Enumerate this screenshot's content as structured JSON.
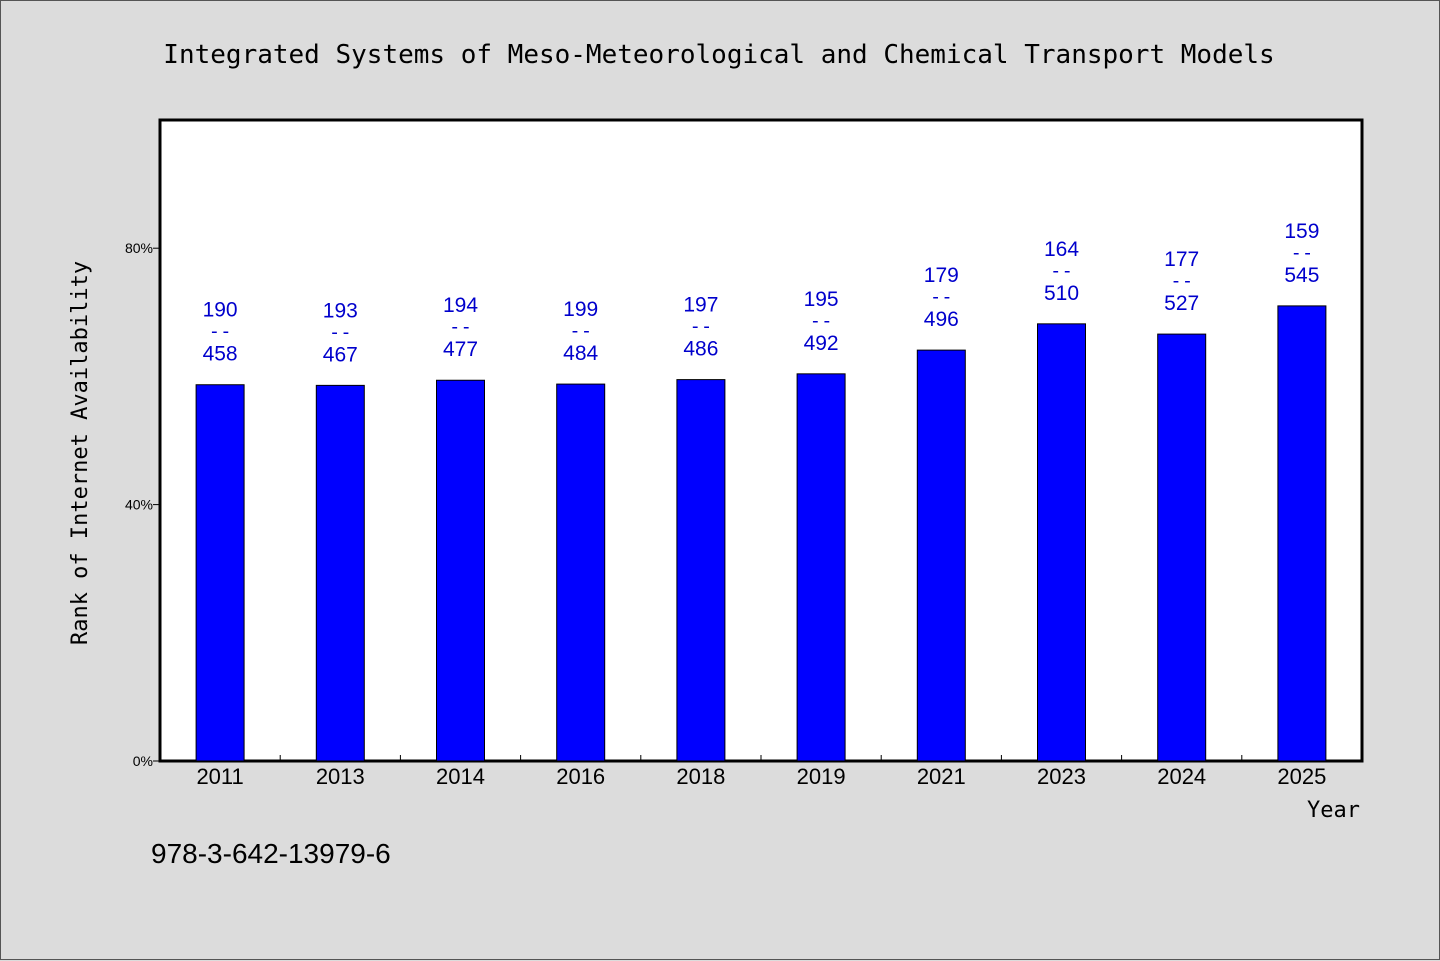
{
  "chart_data": {
    "type": "bar",
    "title": "Integrated Systems of Meso-Meteorological and Chemical Transport Models",
    "xlabel": "Year",
    "ylabel": "Rank of Internet Availability",
    "ylim": [
      0,
      100
    ],
    "yticks": [
      0,
      40,
      80
    ],
    "ytick_labels": [
      "0%",
      "40%",
      "80%"
    ],
    "categories": [
      "2011",
      "2013",
      "2014",
      "2016",
      "2018",
      "2019",
      "2021",
      "2023",
      "2024",
      "2025"
    ],
    "values": [
      58.7,
      58.6,
      59.4,
      58.8,
      59.5,
      60.4,
      64.1,
      68.2,
      66.6,
      71.0
    ],
    "label_top": [
      "190",
      "193",
      "194",
      "199",
      "197",
      "195",
      "179",
      "164",
      "177",
      "159"
    ],
    "label_bottom": [
      "458",
      "467",
      "477",
      "484",
      "486",
      "492",
      "496",
      "510",
      "527",
      "545"
    ],
    "label_separator": "--",
    "grid": false,
    "bar_color": "#0000ff",
    "label_color": "#0000cc"
  },
  "footer": {
    "isbn": "978-3-642-13979-6"
  }
}
